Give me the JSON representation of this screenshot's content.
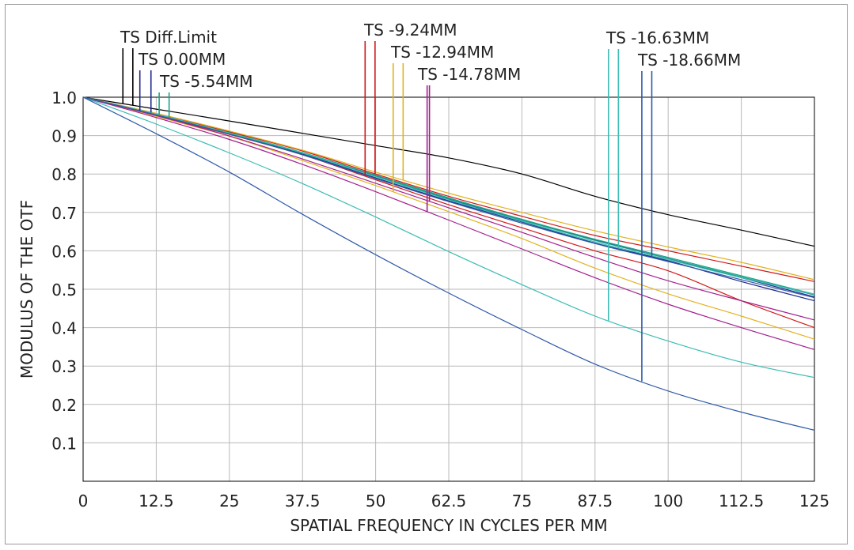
{
  "chart_data": {
    "type": "line",
    "xlabel": "SPATIAL FREQUENCY IN CYCLES PER MM",
    "ylabel": "MODULUS OF THE OTF",
    "xlim": [
      0,
      125
    ],
    "ylim": [
      0,
      1.0
    ],
    "x_ticks": [
      "0",
      "12.5",
      "25",
      "37.5",
      "50",
      "62.5",
      "75",
      "87.5",
      "100",
      "112.5",
      "125"
    ],
    "y_ticks": [
      "0.1",
      "0.2",
      "0.3",
      "0.4",
      "0.5",
      "0.6",
      "0.7",
      "0.8",
      "0.9",
      "1.0"
    ],
    "grid": true,
    "x": [
      0,
      12.5,
      25,
      37.5,
      50,
      62.5,
      75,
      87.5,
      100,
      112.5,
      125
    ],
    "series": [
      {
        "name": "TS Diff.Limit",
        "color": "#000000",
        "tangential": [
          1,
          0.969,
          0.938,
          0.906,
          0.874,
          0.842,
          0.8,
          0.742,
          0.694,
          0.654,
          0.612
        ],
        "sagittal": null
      },
      {
        "name": "TS 0.00MM",
        "color": "#1f2a8c",
        "tangential": [
          1,
          0.955,
          0.905,
          0.852,
          0.79,
          0.73,
          0.675,
          0.62,
          0.574,
          0.52,
          0.47
        ],
        "sagittal": [
          1,
          0.957,
          0.908,
          0.855,
          0.795,
          0.735,
          0.68,
          0.628,
          0.58,
          0.53,
          0.48
        ]
      },
      {
        "name": "TS -5.54MM",
        "color": "#1aa28a",
        "tangential": [
          1,
          0.957,
          0.908,
          0.856,
          0.797,
          0.738,
          0.682,
          0.63,
          0.583,
          0.535,
          0.487
        ],
        "sagittal": [
          1,
          0.955,
          0.906,
          0.854,
          0.794,
          0.736,
          0.68,
          0.627,
          0.58,
          0.532,
          0.485
        ]
      },
      {
        "name": "TS -9.24MM",
        "color": "#d01818",
        "tangential": [
          1,
          0.953,
          0.903,
          0.85,
          0.785,
          0.72,
          0.66,
          0.6,
          0.548,
          0.47,
          0.4
        ],
        "sagittal": [
          1,
          0.957,
          0.91,
          0.86,
          0.8,
          0.742,
          0.69,
          0.64,
          0.6,
          0.56,
          0.52
        ]
      },
      {
        "name": "TS -12.94MM",
        "color": "#e2b220",
        "tangential": [
          1,
          0.95,
          0.898,
          0.835,
          0.77,
          0.702,
          0.632,
          0.555,
          0.488,
          0.43,
          0.37
        ],
        "sagittal": [
          1,
          0.958,
          0.912,
          0.862,
          0.805,
          0.75,
          0.7,
          0.652,
          0.61,
          0.57,
          0.525
        ]
      },
      {
        "name": "TS -14.78MM",
        "color": "#a3208e",
        "tangential": [
          1,
          0.947,
          0.89,
          0.825,
          0.754,
          0.68,
          0.605,
          0.53,
          0.461,
          0.4,
          0.343
        ],
        "sagittal": [
          1,
          0.952,
          0.899,
          0.839,
          0.776,
          0.712,
          0.648,
          0.583,
          0.522,
          0.47,
          0.42
        ]
      },
      {
        "name": "TS -16.63MM",
        "color": "#3cbcb4",
        "tangential": [
          1,
          0.93,
          0.855,
          0.775,
          0.688,
          0.598,
          0.512,
          0.43,
          0.365,
          0.31,
          0.27
        ],
        "sagittal": [
          1,
          0.956,
          0.907,
          0.855,
          0.793,
          0.733,
          0.677,
          0.623,
          0.577,
          0.53,
          0.487
        ]
      },
      {
        "name": "TS -18.66MM",
        "color": "#2f5aa8",
        "tangential": [
          1,
          0.905,
          0.805,
          0.695,
          0.59,
          0.49,
          0.395,
          0.305,
          0.235,
          0.18,
          0.133
        ],
        "sagittal": [
          1,
          0.954,
          0.904,
          0.85,
          0.788,
          0.728,
          0.672,
          0.619,
          0.572,
          0.525,
          0.478
        ]
      }
    ],
    "markers": [
      {
        "series": "TS Diff.Limit",
        "label": "TS Diff.Limit",
        "x": [
          6.8,
          8.5
        ]
      },
      {
        "series": "TS 0.00MM",
        "label": "TS 0.00MM",
        "x": [
          9.7,
          11.6
        ]
      },
      {
        "series": "TS -5.54MM",
        "label": "TS -5.54MM",
        "x": [
          13.0,
          14.7
        ]
      },
      {
        "series": "TS -9.24MM",
        "label": "TS -9.24MM",
        "x": [
          48.2,
          49.9
        ]
      },
      {
        "series": "TS -12.94MM",
        "label": "TS -12.94MM",
        "x": [
          53.0,
          54.7
        ]
      },
      {
        "series": "TS -14.78MM",
        "label": "TS -14.78MM",
        "x": [
          58.8,
          59.2
        ]
      },
      {
        "series": "TS -16.63MM",
        "label": "TS -16.63MM",
        "x": [
          89.8,
          91.5
        ]
      },
      {
        "series": "TS -18.66MM",
        "label": "TS -18.66MM",
        "x": [
          95.5,
          97.2
        ]
      }
    ]
  }
}
